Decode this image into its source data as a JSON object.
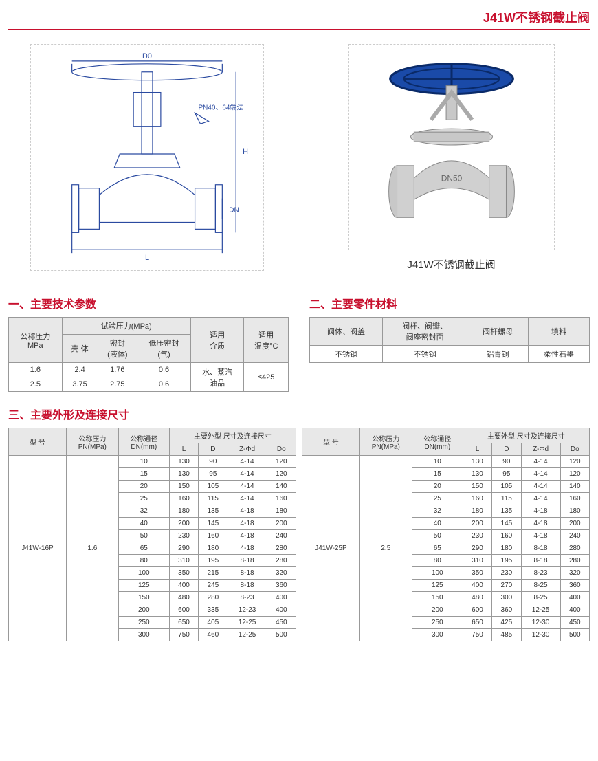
{
  "page_title": "J41W不锈钢截止阀",
  "diagram": {
    "alt": "技术图纸 (D0, PN40/64端法, H, DN, L)",
    "labels": {
      "D0": "D0",
      "note": "PN40、64端法",
      "H": "H",
      "DN": "DN",
      "L": "L"
    }
  },
  "photo": {
    "alt": "J41W不锈钢截止阀 产品图",
    "caption": "J41W不锈钢截止阀"
  },
  "section1": {
    "title": "一、主要技术参数",
    "headers": {
      "pressure": "公称压力\nMPa",
      "test_pressure": "试验压力(MPa)",
      "shell": "壳 体",
      "seal_liquid": "密封\n(液体)",
      "seal_gas": "低压密封\n(气)",
      "medium": "适用\n介质",
      "temp": "适用\n温度°C"
    },
    "rows": [
      {
        "p": "1.6",
        "shell": "2.4",
        "seal_l": "1.76",
        "seal_g": "0.6"
      },
      {
        "p": "2.5",
        "shell": "3.75",
        "seal_l": "2.75",
        "seal_g": "0.6"
      }
    ],
    "medium_val": "水、蒸汽\n油品",
    "temp_val": "≤425"
  },
  "section2": {
    "title": "二、主要零件材料",
    "headers": [
      "阀体、阀盖",
      "阀杆、阀瓣、\n阀座密封面",
      "阀杆螺母",
      "填料"
    ],
    "row": [
      "不锈钢",
      "不锈钢",
      "铝青铜",
      "柔性石墨"
    ]
  },
  "section3": {
    "title": "三、主要外形及连接尺寸",
    "headers": {
      "model": "型 号",
      "pn": "公称压力\nPN(MPa)",
      "dn": "公称通径\nDN(mm)",
      "dims": "主要外型 尺寸及连接尺寸",
      "L": "L",
      "D": "D",
      "Zphid": "Z-Φd",
      "Do": "Do"
    },
    "table_left": {
      "model": "J41W-16P",
      "pn": "1.6",
      "rows": [
        {
          "dn": "10",
          "L": "130",
          "D": "90",
          "Z": "4-14",
          "Do": "120"
        },
        {
          "dn": "15",
          "L": "130",
          "D": "95",
          "Z": "4-14",
          "Do": "120"
        },
        {
          "dn": "20",
          "L": "150",
          "D": "105",
          "Z": "4-14",
          "Do": "140"
        },
        {
          "dn": "25",
          "L": "160",
          "D": "115",
          "Z": "4-14",
          "Do": "160"
        },
        {
          "dn": "32",
          "L": "180",
          "D": "135",
          "Z": "4-18",
          "Do": "180"
        },
        {
          "dn": "40",
          "L": "200",
          "D": "145",
          "Z": "4-18",
          "Do": "200"
        },
        {
          "dn": "50",
          "L": "230",
          "D": "160",
          "Z": "4-18",
          "Do": "240"
        },
        {
          "dn": "65",
          "L": "290",
          "D": "180",
          "Z": "4-18",
          "Do": "280"
        },
        {
          "dn": "80",
          "L": "310",
          "D": "195",
          "Z": "8-18",
          "Do": "280"
        },
        {
          "dn": "100",
          "L": "350",
          "D": "215",
          "Z": "8-18",
          "Do": "320"
        },
        {
          "dn": "125",
          "L": "400",
          "D": "245",
          "Z": "8-18",
          "Do": "360"
        },
        {
          "dn": "150",
          "L": "480",
          "D": "280",
          "Z": "8-23",
          "Do": "400"
        },
        {
          "dn": "200",
          "L": "600",
          "D": "335",
          "Z": "12-23",
          "Do": "400"
        },
        {
          "dn": "250",
          "L": "650",
          "D": "405",
          "Z": "12-25",
          "Do": "450"
        },
        {
          "dn": "300",
          "L": "750",
          "D": "460",
          "Z": "12-25",
          "Do": "500"
        }
      ]
    },
    "table_right": {
      "model": "J41W-25P",
      "pn": "2.5",
      "rows": [
        {
          "dn": "10",
          "L": "130",
          "D": "90",
          "Z": "4-14",
          "Do": "120"
        },
        {
          "dn": "15",
          "L": "130",
          "D": "95",
          "Z": "4-14",
          "Do": "120"
        },
        {
          "dn": "20",
          "L": "150",
          "D": "105",
          "Z": "4-14",
          "Do": "140"
        },
        {
          "dn": "25",
          "L": "160",
          "D": "115",
          "Z": "4-14",
          "Do": "160"
        },
        {
          "dn": "32",
          "L": "180",
          "D": "135",
          "Z": "4-18",
          "Do": "180"
        },
        {
          "dn": "40",
          "L": "200",
          "D": "145",
          "Z": "4-18",
          "Do": "200"
        },
        {
          "dn": "50",
          "L": "230",
          "D": "160",
          "Z": "4-18",
          "Do": "240"
        },
        {
          "dn": "65",
          "L": "290",
          "D": "180",
          "Z": "8-18",
          "Do": "280"
        },
        {
          "dn": "80",
          "L": "310",
          "D": "195",
          "Z": "8-18",
          "Do": "280"
        },
        {
          "dn": "100",
          "L": "350",
          "D": "230",
          "Z": "8-23",
          "Do": "320"
        },
        {
          "dn": "125",
          "L": "400",
          "D": "270",
          "Z": "8-25",
          "Do": "360"
        },
        {
          "dn": "150",
          "L": "480",
          "D": "300",
          "Z": "8-25",
          "Do": "400"
        },
        {
          "dn": "200",
          "L": "600",
          "D": "360",
          "Z": "12-25",
          "Do": "400"
        },
        {
          "dn": "250",
          "L": "650",
          "D": "425",
          "Z": "12-30",
          "Do": "450"
        },
        {
          "dn": "300",
          "L": "750",
          "D": "485",
          "Z": "12-30",
          "Do": "500"
        }
      ]
    }
  }
}
